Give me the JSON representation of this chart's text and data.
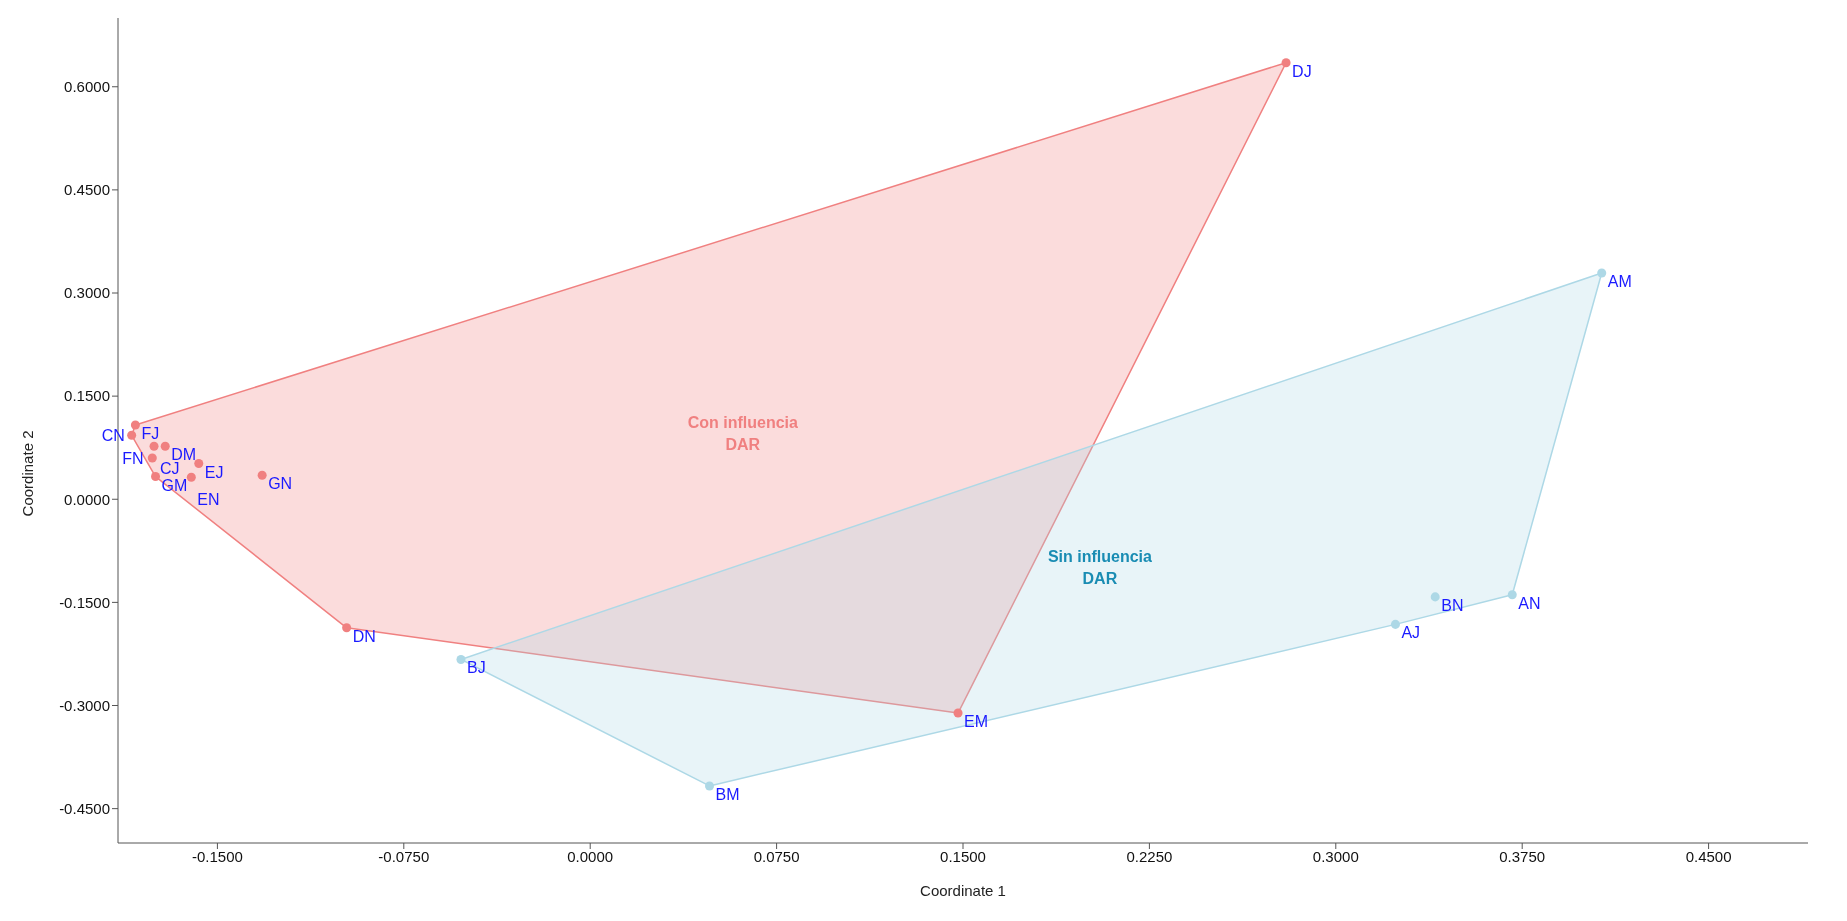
{
  "chart_data": {
    "type": "scatter",
    "xlabel": "Coordinate 1",
    "ylabel": "Coordinate 2",
    "xlim": [
      -0.19,
      0.49
    ],
    "ylim": [
      -0.5,
      0.7
    ],
    "xticks": [
      {
        "value": -0.15,
        "label": "-0.1500"
      },
      {
        "value": -0.075,
        "label": "-0.0750"
      },
      {
        "value": 0,
        "label": "0.0000"
      },
      {
        "value": 0.075,
        "label": "0.0750"
      },
      {
        "value": 0.15,
        "label": "0.1500"
      },
      {
        "value": 0.225,
        "label": "0.2250"
      },
      {
        "value": 0.3,
        "label": "0.3000"
      },
      {
        "value": 0.375,
        "label": "0.3750"
      },
      {
        "value": 0.45,
        "label": "0.4500"
      }
    ],
    "yticks": [
      {
        "value": -0.45,
        "label": "-0.4500"
      },
      {
        "value": -0.3,
        "label": "-0.3000"
      },
      {
        "value": -0.15,
        "label": "-0.1500"
      },
      {
        "value": 0,
        "label": "0.0000"
      },
      {
        "value": 0.15,
        "label": "0.1500"
      },
      {
        "value": 0.3,
        "label": "0.3000"
      },
      {
        "value": 0.45,
        "label": "0.4500"
      },
      {
        "value": 0.6,
        "label": "0.6000"
      }
    ],
    "grid": false,
    "legend": false,
    "marker": "circle",
    "series": [
      {
        "name": "Con influencia DAR",
        "color": "#f08080",
        "x": [
          -0.183,
          -0.1845,
          -0.171,
          -0.1755,
          -0.1762,
          -0.1749,
          -0.1575,
          -0.1605,
          -0.132,
          -0.098,
          0.148,
          0.28
        ],
        "values": [
          0.108,
          0.093,
          0.077,
          0.077,
          0.06,
          0.033,
          0.052,
          0.032,
          0.035,
          -0.187,
          -0.311,
          0.635
        ],
        "value_labels": [
          "FJ",
          "CN",
          "DM",
          "CJ",
          "FN",
          "GM",
          "EJ",
          "EN",
          "GN",
          "DN",
          "EM",
          "DJ"
        ]
      },
      {
        "name": "Sin influencia DAR",
        "color": "#add8e6",
        "x": [
          0.407,
          0.371,
          0.34,
          0.324,
          -0.052,
          0.048
        ],
        "values": [
          0.329,
          -0.139,
          -0.142,
          -0.182,
          -0.233,
          -0.417
        ],
        "value_labels": [
          "AM",
          "AN",
          "BN",
          "AJ",
          "BJ",
          "BM"
        ]
      }
    ]
  }
}
